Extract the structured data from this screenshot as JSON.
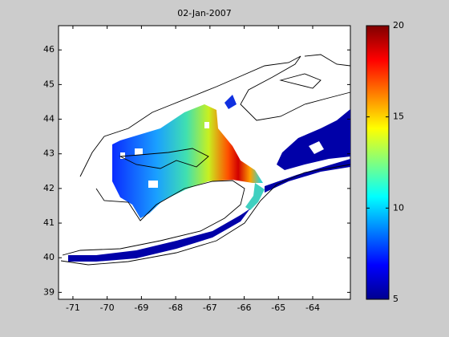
{
  "chart_data": {
    "type": "map",
    "title": "02-Jan-2007",
    "xlim": [
      -71.42,
      -62.9
    ],
    "xticks": [
      -71,
      -70,
      -69,
      -68,
      -67,
      -66,
      -65,
      -64
    ],
    "ylim": [
      38.8,
      46.7
    ],
    "yticks": [
      39,
      40,
      41,
      42,
      43,
      44,
      45,
      46
    ],
    "colorbar": {
      "lim": [
        5,
        20
      ],
      "ticks": [
        5,
        10,
        15,
        20
      ]
    }
  }
}
